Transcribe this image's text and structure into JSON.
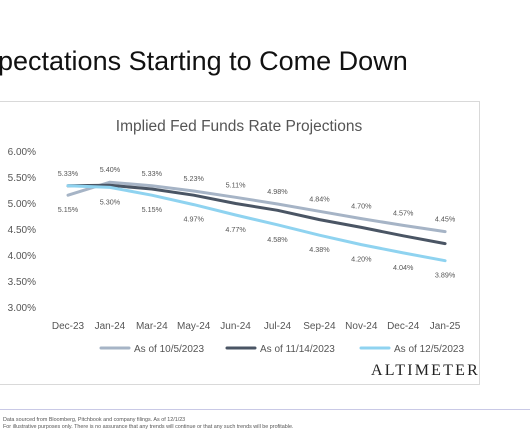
{
  "slide": {
    "title": "pectations Starting to Come Down",
    "brand": "ALTIMETER",
    "footnote_1": "Data sourced from Bloomberg, Pitchbook and company filings. As of 12/1/23",
    "footnote_2": "For illustrative purposes only. There is no assurance that any trends will continue or that any such trends will be profitable."
  },
  "chart_data": {
    "type": "line",
    "title": "Implied Fed Funds Rate Projections",
    "xlabel": "",
    "ylabel": "",
    "categories": [
      "Dec-23",
      "Jan-24",
      "Mar-24",
      "May-24",
      "Jun-24",
      "Jul-24",
      "Sep-24",
      "Nov-24",
      "Dec-24",
      "Jan-25"
    ],
    "y_ticks": [
      "6.00%",
      "5.50%",
      "5.00%",
      "4.50%",
      "4.00%",
      "3.50%",
      "3.00%"
    ],
    "ylim": [
      3.0,
      6.0
    ],
    "grid": false,
    "legend_position": "bottom",
    "series": [
      {
        "name": "As of 10/5/2023",
        "color": "#a6b4c6",
        "values": [
          5.15,
          5.4,
          5.33,
          5.23,
          5.11,
          4.98,
          4.84,
          4.7,
          4.57,
          4.45
        ],
        "labels": [
          "5.15%",
          "5.40%",
          "5.33%",
          "5.23%",
          "5.11%",
          "4.98%",
          "4.84%",
          "4.70%",
          "4.57%",
          "4.45%"
        ]
      },
      {
        "name": "As of 11/14/2023",
        "color": "#4a5564",
        "values": [
          5.33,
          5.34,
          5.27,
          5.15,
          4.99,
          4.86,
          4.68,
          4.53,
          4.37,
          4.22
        ],
        "labels": [
          "5.33%",
          "",
          "",
          "",
          "",
          "",
          "",
          "",
          "",
          ""
        ]
      },
      {
        "name": "As of 12/5/2023",
        "color": "#8fd3f0",
        "values": [
          5.33,
          5.3,
          5.15,
          4.97,
          4.77,
          4.58,
          4.38,
          4.2,
          4.04,
          3.89
        ],
        "labels": [
          "",
          "5.30%",
          "5.15%",
          "4.97%",
          "4.77%",
          "4.58%",
          "4.38%",
          "4.20%",
          "4.04%",
          "3.89%"
        ]
      }
    ]
  }
}
